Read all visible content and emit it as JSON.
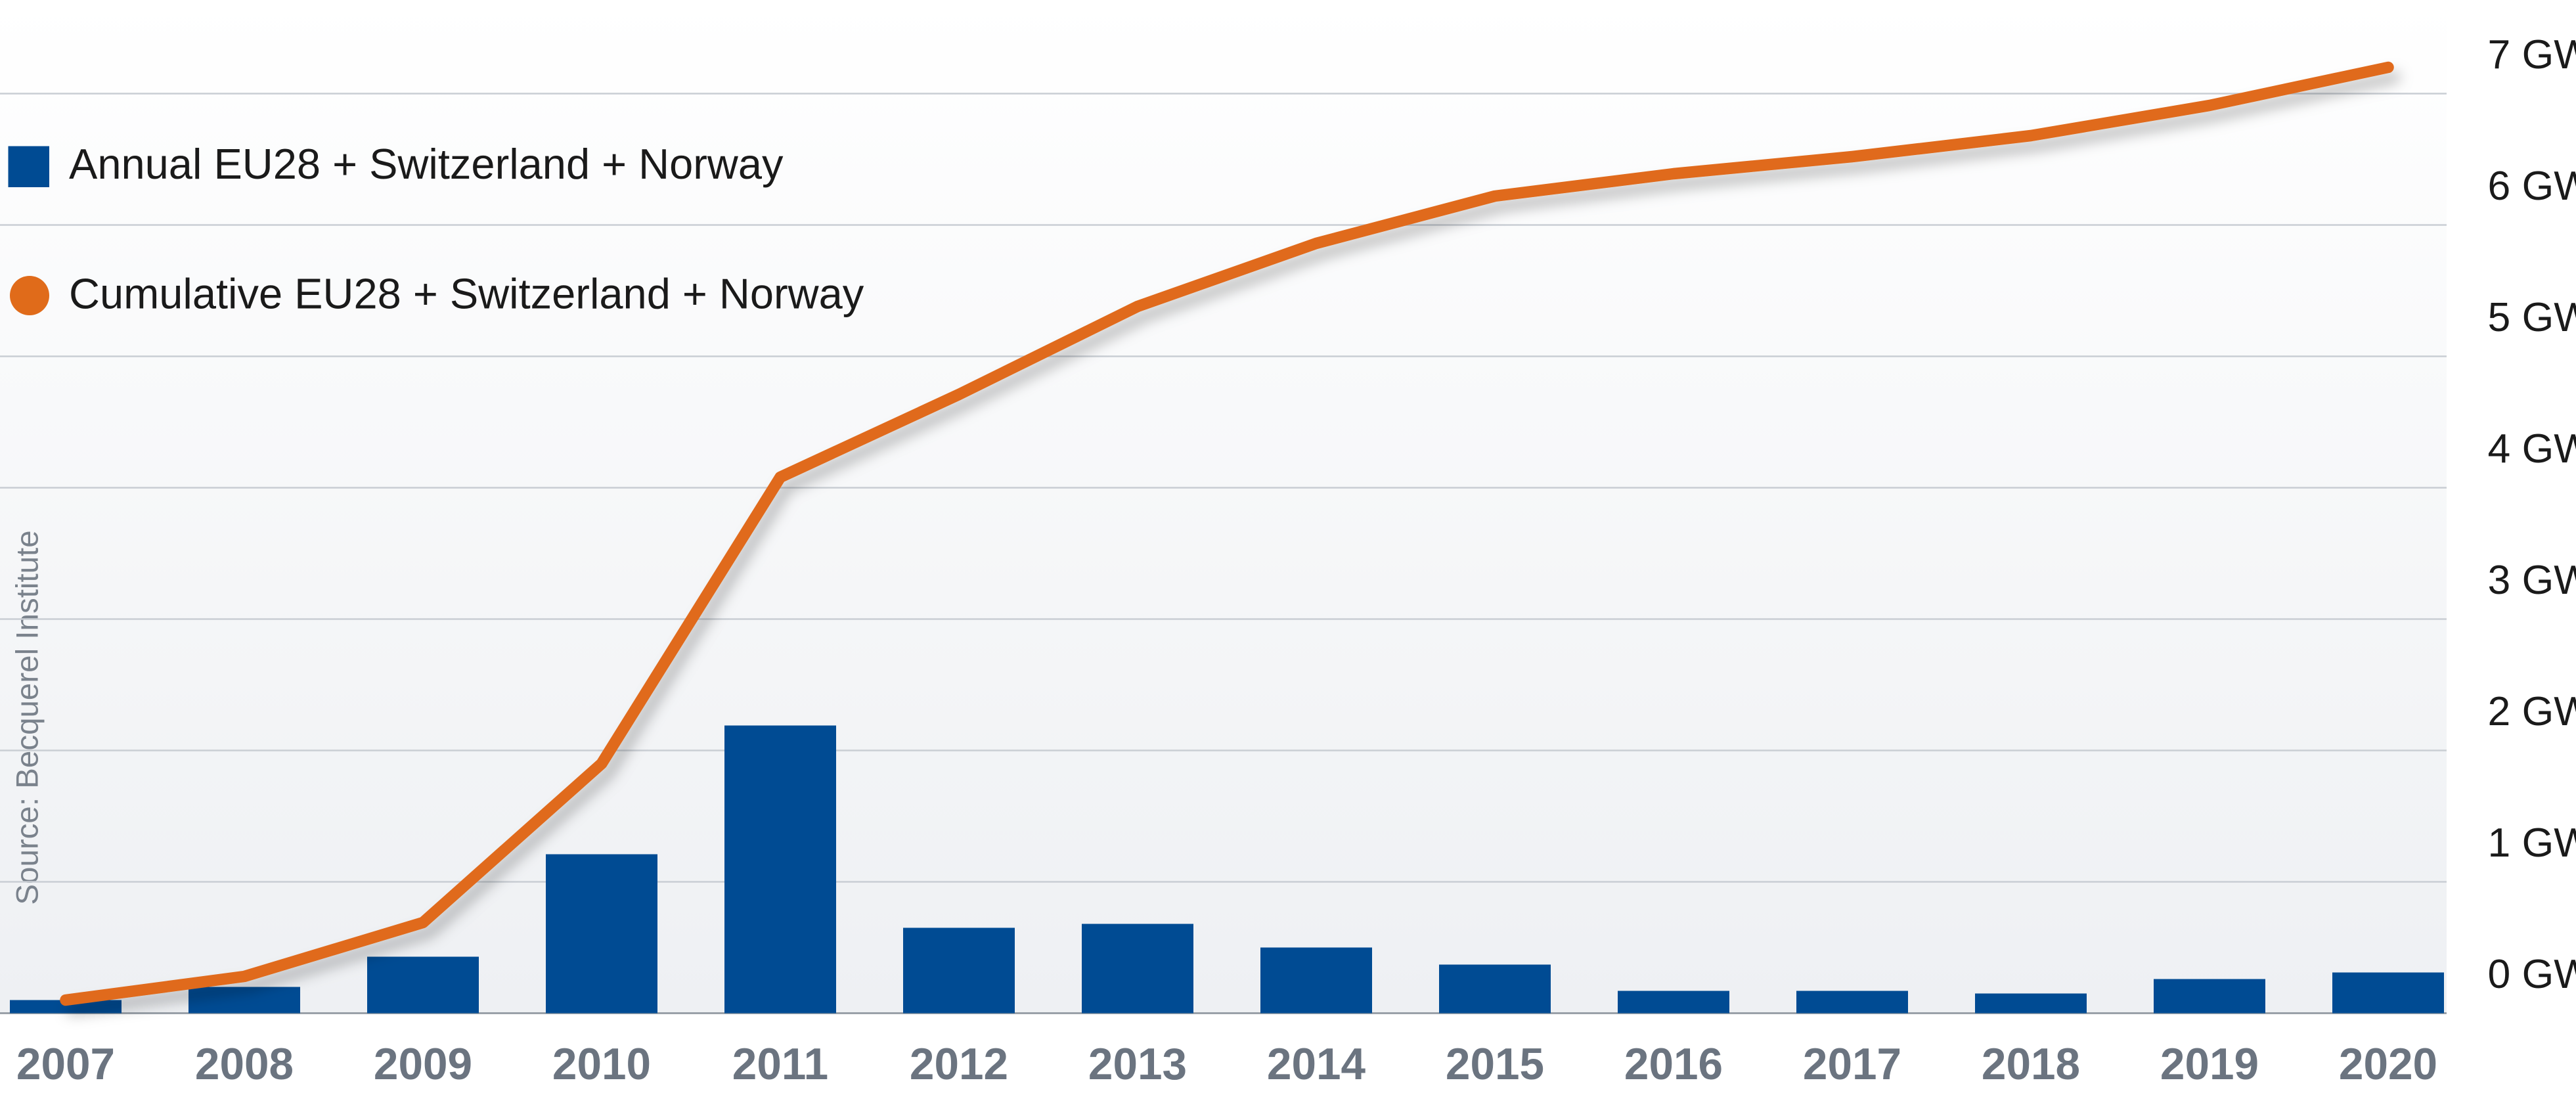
{
  "chart_data": {
    "type": "combo",
    "source": "Source: Becquerel Institute",
    "categories": [
      "2007",
      "2008",
      "2009",
      "2010",
      "2011",
      "2012",
      "2013",
      "2014",
      "2015",
      "2016",
      "2017",
      "2018",
      "2019",
      "2020"
    ],
    "series": [
      {
        "name": "Annual EU28 + Switzerland + Norway",
        "type": "bar",
        "color": "#004b93",
        "values": [
          0.1,
          0.2,
          0.43,
          1.21,
          2.19,
          0.65,
          0.68,
          0.5,
          0.37,
          0.17,
          0.17,
          0.15,
          0.26,
          0.31
        ]
      },
      {
        "name": "Cumulative EU28 + Switzerland + Norway",
        "type": "line",
        "color": "#e06b1a",
        "values": [
          0.1,
          0.28,
          0.69,
          1.9,
          4.08,
          4.71,
          5.38,
          5.86,
          6.22,
          6.39,
          6.52,
          6.68,
          6.91,
          7.2
        ]
      }
    ],
    "ylim": [
      0,
      7
    ],
    "yticks": [
      {
        "value": 0,
        "label": "0 GW"
      },
      {
        "value": 1,
        "label": "1 GW"
      },
      {
        "value": 2,
        "label": "2 GW"
      },
      {
        "value": 3,
        "label": "3 GW"
      },
      {
        "value": 4,
        "label": "4 GW"
      },
      {
        "value": 5,
        "label": "5 GW"
      },
      {
        "value": 6,
        "label": "6 GW"
      },
      {
        "value": 7,
        "label": "7 GW"
      }
    ],
    "grid": true
  }
}
